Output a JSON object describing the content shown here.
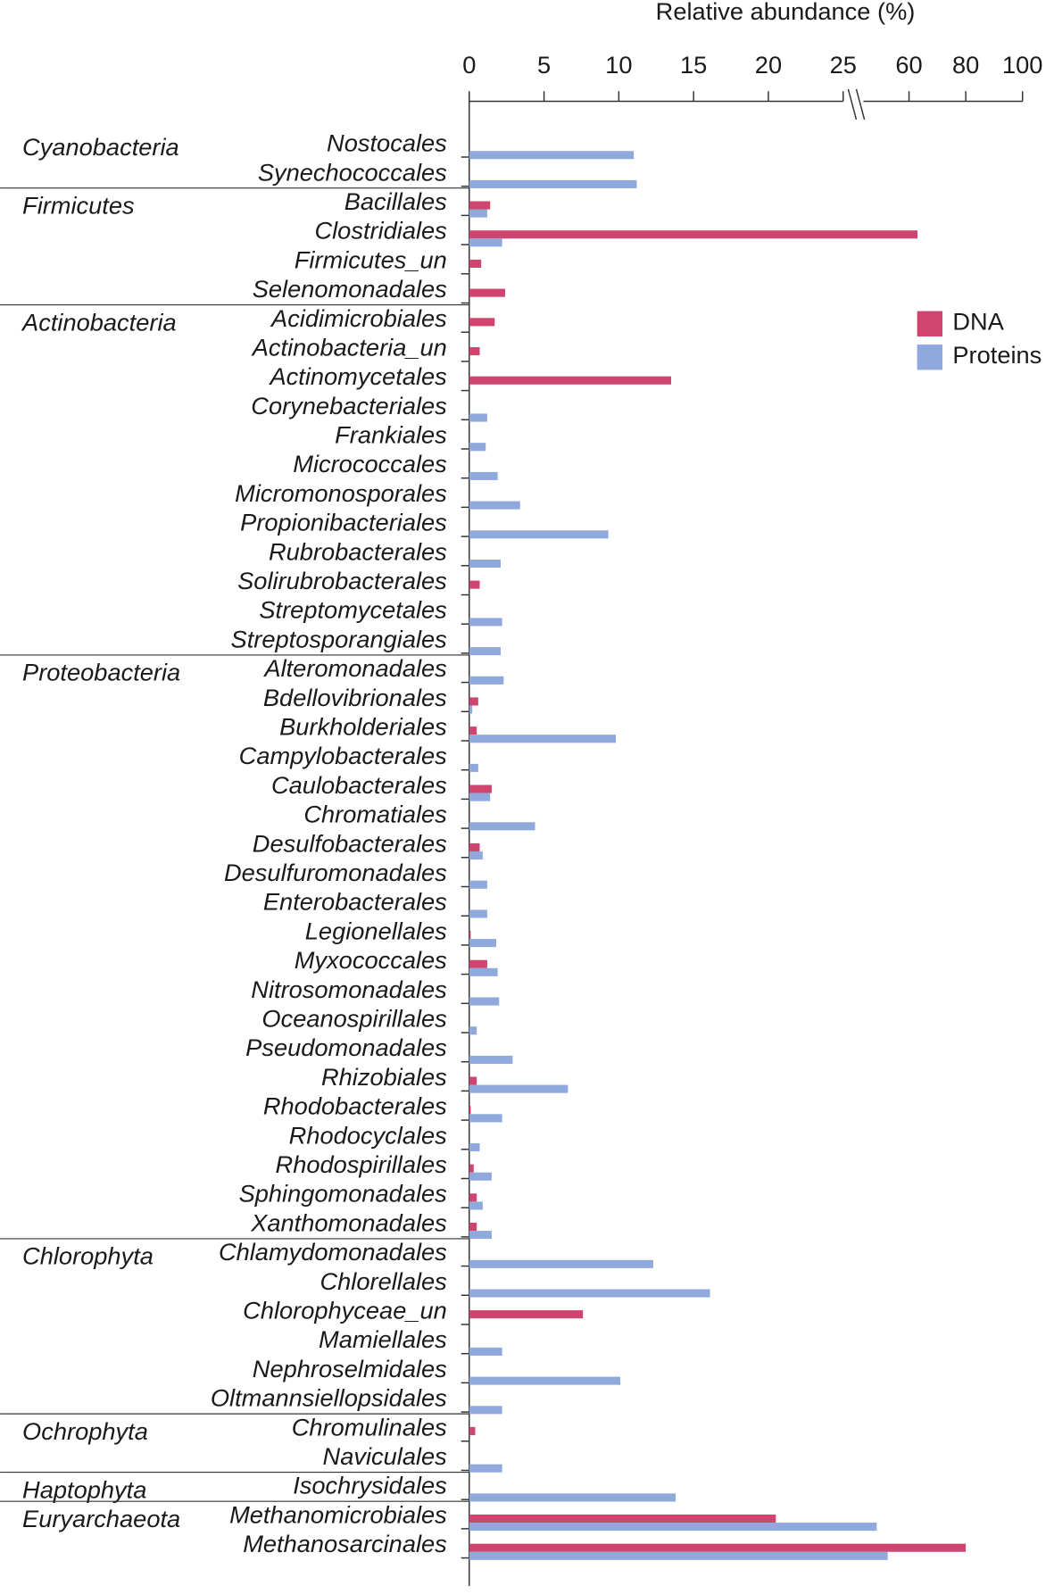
{
  "chart_data": {
    "type": "bar",
    "orientation": "horizontal",
    "x_label": "Relative abundance (%)",
    "xlim": [
      0,
      100
    ],
    "xticks": [
      0,
      5,
      10,
      15,
      20,
      25,
      60,
      80,
      100
    ],
    "axis_break": [
      25,
      40
    ],
    "categories": [
      "Nostocales",
      "Synechococcales",
      "Bacillales",
      "Clostridiales",
      "Firmicutes_un",
      "Selenomonadales",
      "Acidimicrobiales",
      "Actinobacteria_un",
      "Actinomycetales",
      "Corynebacteriales",
      "Frankiales",
      "Micrococcales",
      "Micromonosporales",
      "Propionibacteriales",
      "Rubrobacterales",
      "Solirubrobacterales",
      "Streptomycetales",
      "Streptosporangiales",
      "Alteromonadales",
      "Bdellovibrionales",
      "Burkholderiales",
      "Campylobacterales",
      "Caulobacterales",
      "Chromatiales",
      "Desulfobacterales",
      "Desulfuromonadales",
      "Enterobacterales",
      "Legionellales",
      "Myxococcales",
      "Nitrosomonadales",
      "Oceanospirillales",
      "Pseudomonadales",
      "Rhizobiales",
      "Rhodobacterales",
      "Rhodocyclales",
      "Rhodospirillales",
      "Sphingomonadales",
      "Xanthomonadales",
      "Chlamydomonadales",
      "Chlorellales",
      "Chlorophyceae_un",
      "Mamiellales",
      "Nephroselmidales",
      "Oltmannsiellopsidales",
      "Chromulinales",
      "Naviculales",
      "Isochrysidales",
      "Methanomicrobiales",
      "Methanosarcinales"
    ],
    "groups": [
      "Cyanobacteria",
      null,
      "Firmicutes",
      null,
      null,
      null,
      "Actinobacteria",
      null,
      null,
      null,
      null,
      null,
      null,
      null,
      null,
      null,
      null,
      null,
      "Proteobacteria",
      null,
      null,
      null,
      null,
      null,
      null,
      null,
      null,
      null,
      null,
      null,
      null,
      null,
      null,
      null,
      null,
      null,
      null,
      null,
      "Chlorophyta",
      null,
      null,
      null,
      null,
      null,
      "Ochrophyta",
      null,
      "Haptophyta",
      "Euryarchaeota",
      null
    ],
    "series": [
      {
        "name": "DNA",
        "color": "#d0456f",
        "values": [
          null,
          null,
          1.4,
          63,
          0.8,
          2.4,
          1.7,
          0.7,
          13.5,
          null,
          null,
          null,
          null,
          null,
          null,
          0.7,
          null,
          null,
          null,
          0.6,
          0.5,
          null,
          1.5,
          null,
          0.7,
          null,
          null,
          0.1,
          1.2,
          null,
          null,
          null,
          0.5,
          0.1,
          null,
          0.3,
          0.5,
          0.5,
          null,
          null,
          7.6,
          null,
          null,
          null,
          0.4,
          null,
          null,
          20.5,
          80
        ]
      },
      {
        "name": "Proteins",
        "color": "#8fa9dc",
        "values": [
          11,
          11.2,
          1.2,
          2.2,
          null,
          null,
          null,
          null,
          null,
          1.2,
          1.1,
          1.9,
          3.4,
          9.3,
          2.1,
          null,
          2.2,
          2.1,
          2.3,
          0.2,
          9.8,
          0.6,
          1.4,
          4.4,
          0.9,
          1.2,
          1.2,
          1.8,
          1.9,
          2,
          0.5,
          2.9,
          6.6,
          2.2,
          0.7,
          1.5,
          0.9,
          1.5,
          12.3,
          16.1,
          null,
          2.2,
          10.1,
          2.2,
          null,
          2.2,
          13.8,
          48.6,
          52.5
        ]
      }
    ]
  }
}
